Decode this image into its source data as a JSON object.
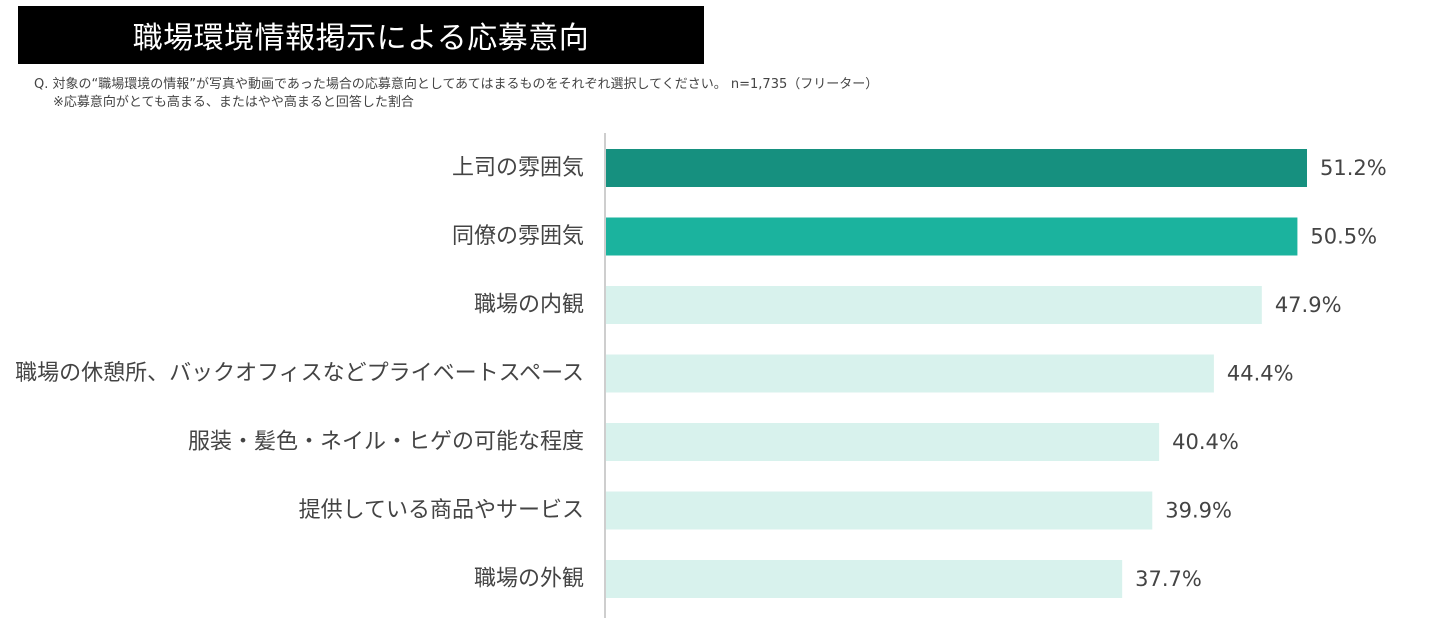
{
  "header": {
    "title": "職場環境情報掲示による応募意向",
    "question": "Q. 対象の“職場環境の情報”が写真や動画であった場合の応募意向としてあてはまるものをそれぞれ選択してください。 n=1,735（フリーター）",
    "note": "※応募意向がとても高まる、またはやや高まると回答した割合"
  },
  "chart_data": {
    "type": "bar",
    "orientation": "horizontal",
    "categories": [
      "上司の雰囲気",
      "同僚の雰囲気",
      "職場の内観",
      "職場の休憩所、バックオフィスなどプライベートスペース",
      "服装・髪色・ネイル・ヒゲの可能な程度",
      "提供している商品やサービス",
      "職場の外観"
    ],
    "values": [
      51.2,
      50.5,
      47.9,
      44.4,
      40.4,
      39.9,
      37.7
    ],
    "value_labels": [
      "51.2%",
      "50.5%",
      "47.9%",
      "44.4%",
      "40.4%",
      "39.9%",
      "37.7%"
    ],
    "bar_colors": [
      "#16907f",
      "#1bb39e",
      "#d8f2ed",
      "#d8f2ed",
      "#d8f2ed",
      "#d8f2ed",
      "#d8f2ed"
    ],
    "axis_line_color": "#bdbdbd",
    "xlim": [
      0,
      51.2
    ],
    "grid": false,
    "legend": "none"
  }
}
